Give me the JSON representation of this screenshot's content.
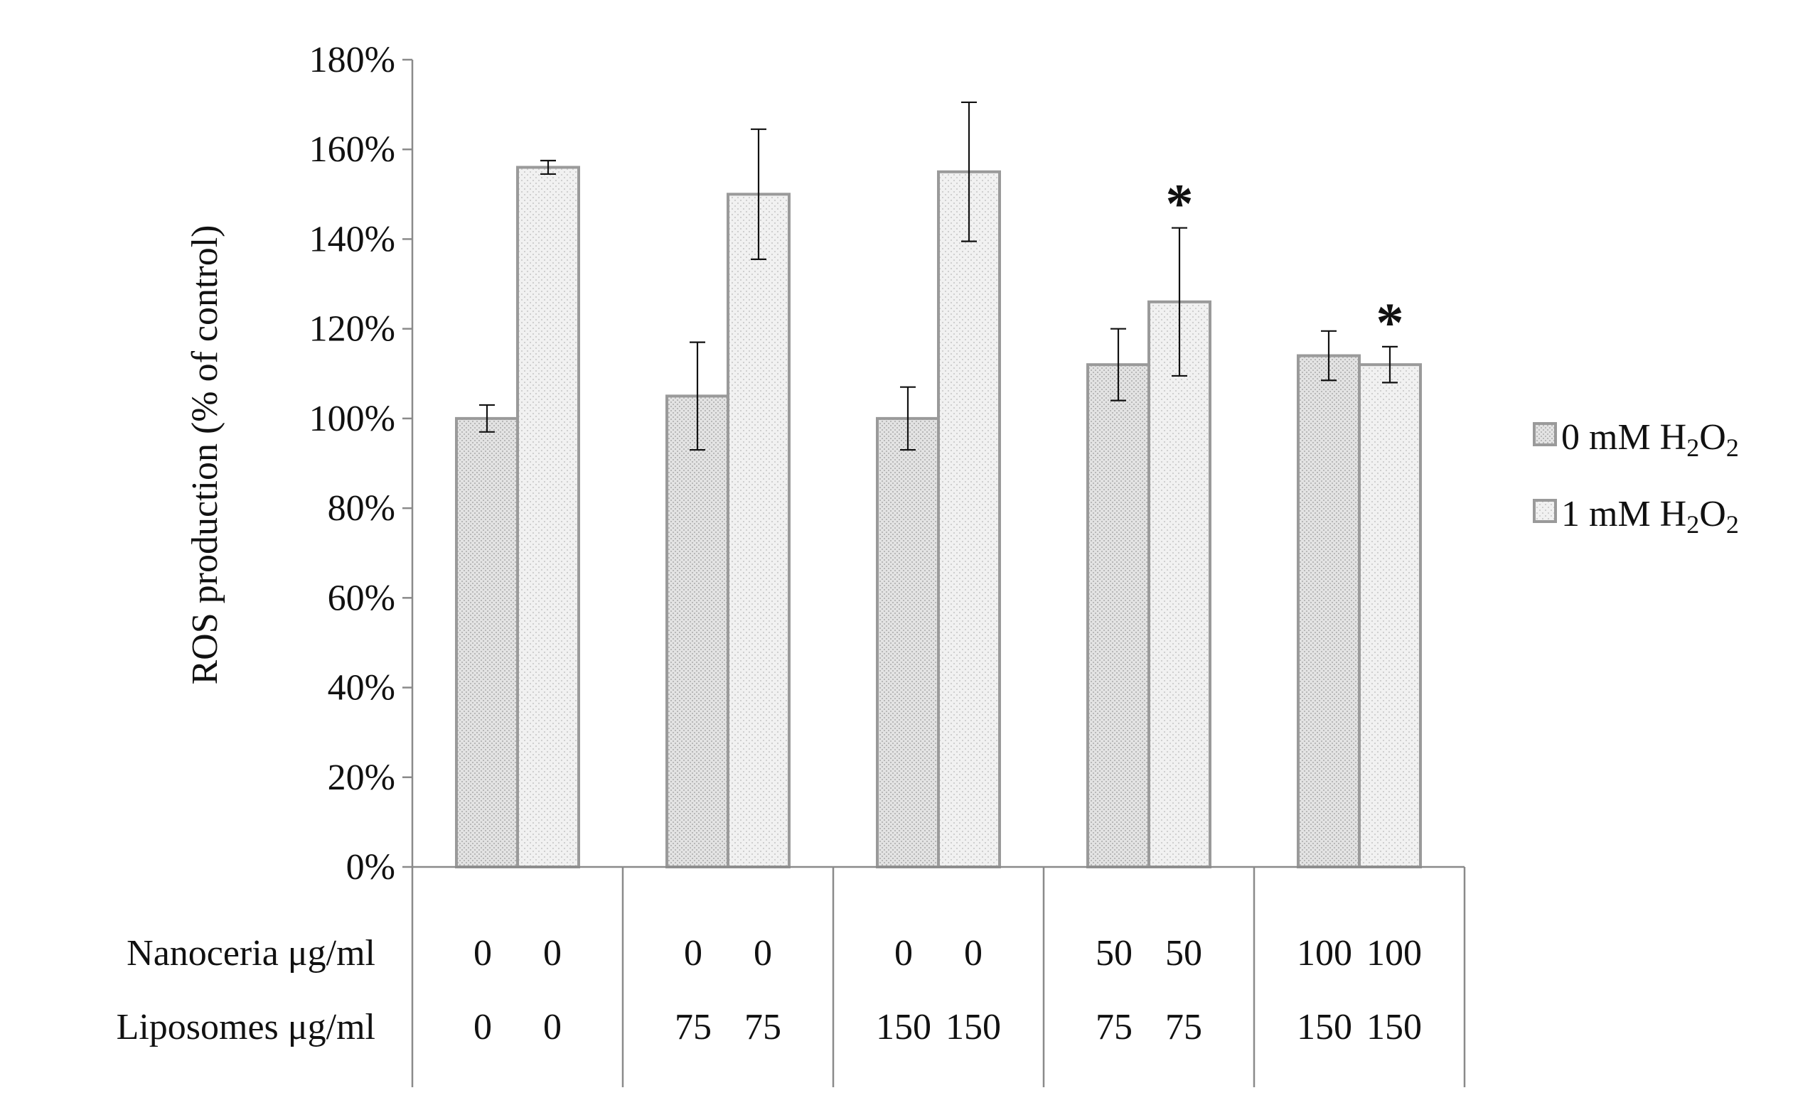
{
  "chart_data": {
    "type": "bar",
    "ylabel": "ROS production (% of control)",
    "ylim": [
      0,
      180
    ],
    "yticks": [
      0,
      20,
      40,
      60,
      80,
      100,
      120,
      140,
      160,
      180
    ],
    "ytick_suffix": "%",
    "groups": 5,
    "series": [
      {
        "name": "0 mM H2O2",
        "legend_prefix": "0 mM H",
        "legend_sub1": "2",
        "legend_mid": "O",
        "legend_sub2": "2",
        "fill": "#e3e3e3",
        "pattern_dot": "#b8b8b8",
        "values": [
          100,
          105,
          100,
          112,
          114
        ],
        "errors": [
          3,
          12,
          7,
          8,
          5.5
        ],
        "significant": [
          false,
          false,
          false,
          false,
          false
        ]
      },
      {
        "name": "1 mM H2O2",
        "legend_prefix": "1 mM H",
        "legend_sub1": "2",
        "legend_mid": "O",
        "legend_sub2": "2",
        "fill": "#f1f1f1",
        "pattern_dot": "#cfcfcf",
        "values": [
          156,
          150,
          155,
          126,
          112
        ],
        "errors": [
          1.5,
          14.5,
          15.5,
          16.5,
          4
        ],
        "significant": [
          false,
          false,
          false,
          true,
          true
        ]
      }
    ],
    "significance_marker": "*",
    "table": {
      "rows": [
        {
          "label": "Nanoceria μg/ml",
          "values": [
            [
              "0",
              "0"
            ],
            [
              "0",
              "0"
            ],
            [
              "0",
              "0"
            ],
            [
              "50",
              "50"
            ],
            [
              "100",
              "100"
            ]
          ]
        },
        {
          "label": "Liposomes μg/ml",
          "values": [
            [
              "0",
              "0"
            ],
            [
              "75",
              "75"
            ],
            [
              "150",
              "150"
            ],
            [
              "75",
              "75"
            ],
            [
              "150",
              "150"
            ]
          ]
        }
      ]
    },
    "legend_position": "right",
    "grid": false
  }
}
